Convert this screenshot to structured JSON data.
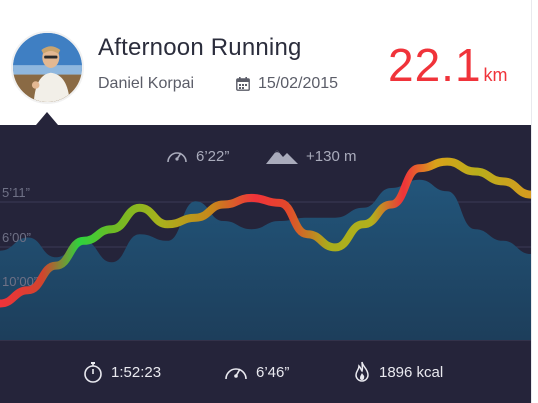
{
  "activity": {
    "title": "Afternoon Running",
    "author": "Daniel Korpai",
    "date": "15/02/2015",
    "distance_value": "22.1",
    "distance_unit": "km"
  },
  "summary_top": {
    "pace": "6’22”",
    "elevation": "+130 m"
  },
  "chart_data": {
    "type": "line",
    "y_tick_labels": [
      "5’11”",
      "6’00”",
      "10’00”"
    ],
    "series": [
      {
        "values": [
          0.1,
          0.18,
          0.33,
          0.48,
          0.55,
          0.68,
          0.58,
          0.62,
          0.7,
          0.74,
          0.71,
          0.52,
          0.44,
          0.58,
          0.7,
          0.92,
          0.96,
          0.9,
          0.84,
          0.76
        ]
      },
      {
        "values": [
          0.42,
          0.5,
          0.38,
          0.48,
          0.35,
          0.52,
          0.48,
          0.72,
          0.6,
          0.55,
          0.6,
          0.62,
          0.62,
          0.68,
          0.8,
          0.85,
          0.78,
          0.55,
          0.48,
          0.4
        ]
      }
    ],
    "colors": {
      "slow": "#f0333a",
      "medium": "#b7b81c",
      "fast": "#2ed33e",
      "area": "#1f4967"
    },
    "grid": true
  },
  "summary_bottom": {
    "duration": "1:52:23",
    "avg_pace": "6’46”",
    "calories": "1896 kcal"
  }
}
